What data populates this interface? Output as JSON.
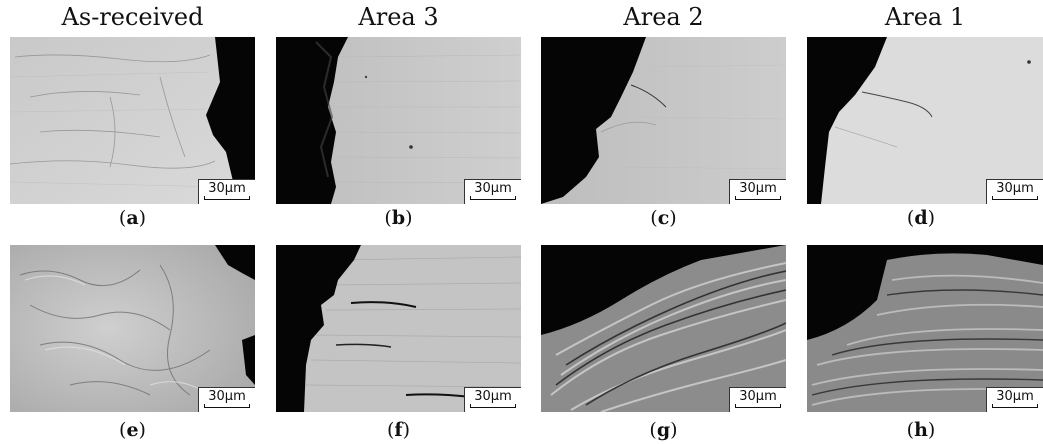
{
  "columns": [
    "As-received",
    "Area 3",
    "Area 2",
    "Area 1"
  ],
  "scale_bar": "30µm",
  "captions": {
    "row1": [
      "a",
      "b",
      "c",
      "d"
    ],
    "row2": [
      "e",
      "f",
      "g",
      "h"
    ]
  },
  "colors": {
    "background": "#ffffff",
    "dark_region": "#050505"
  }
}
